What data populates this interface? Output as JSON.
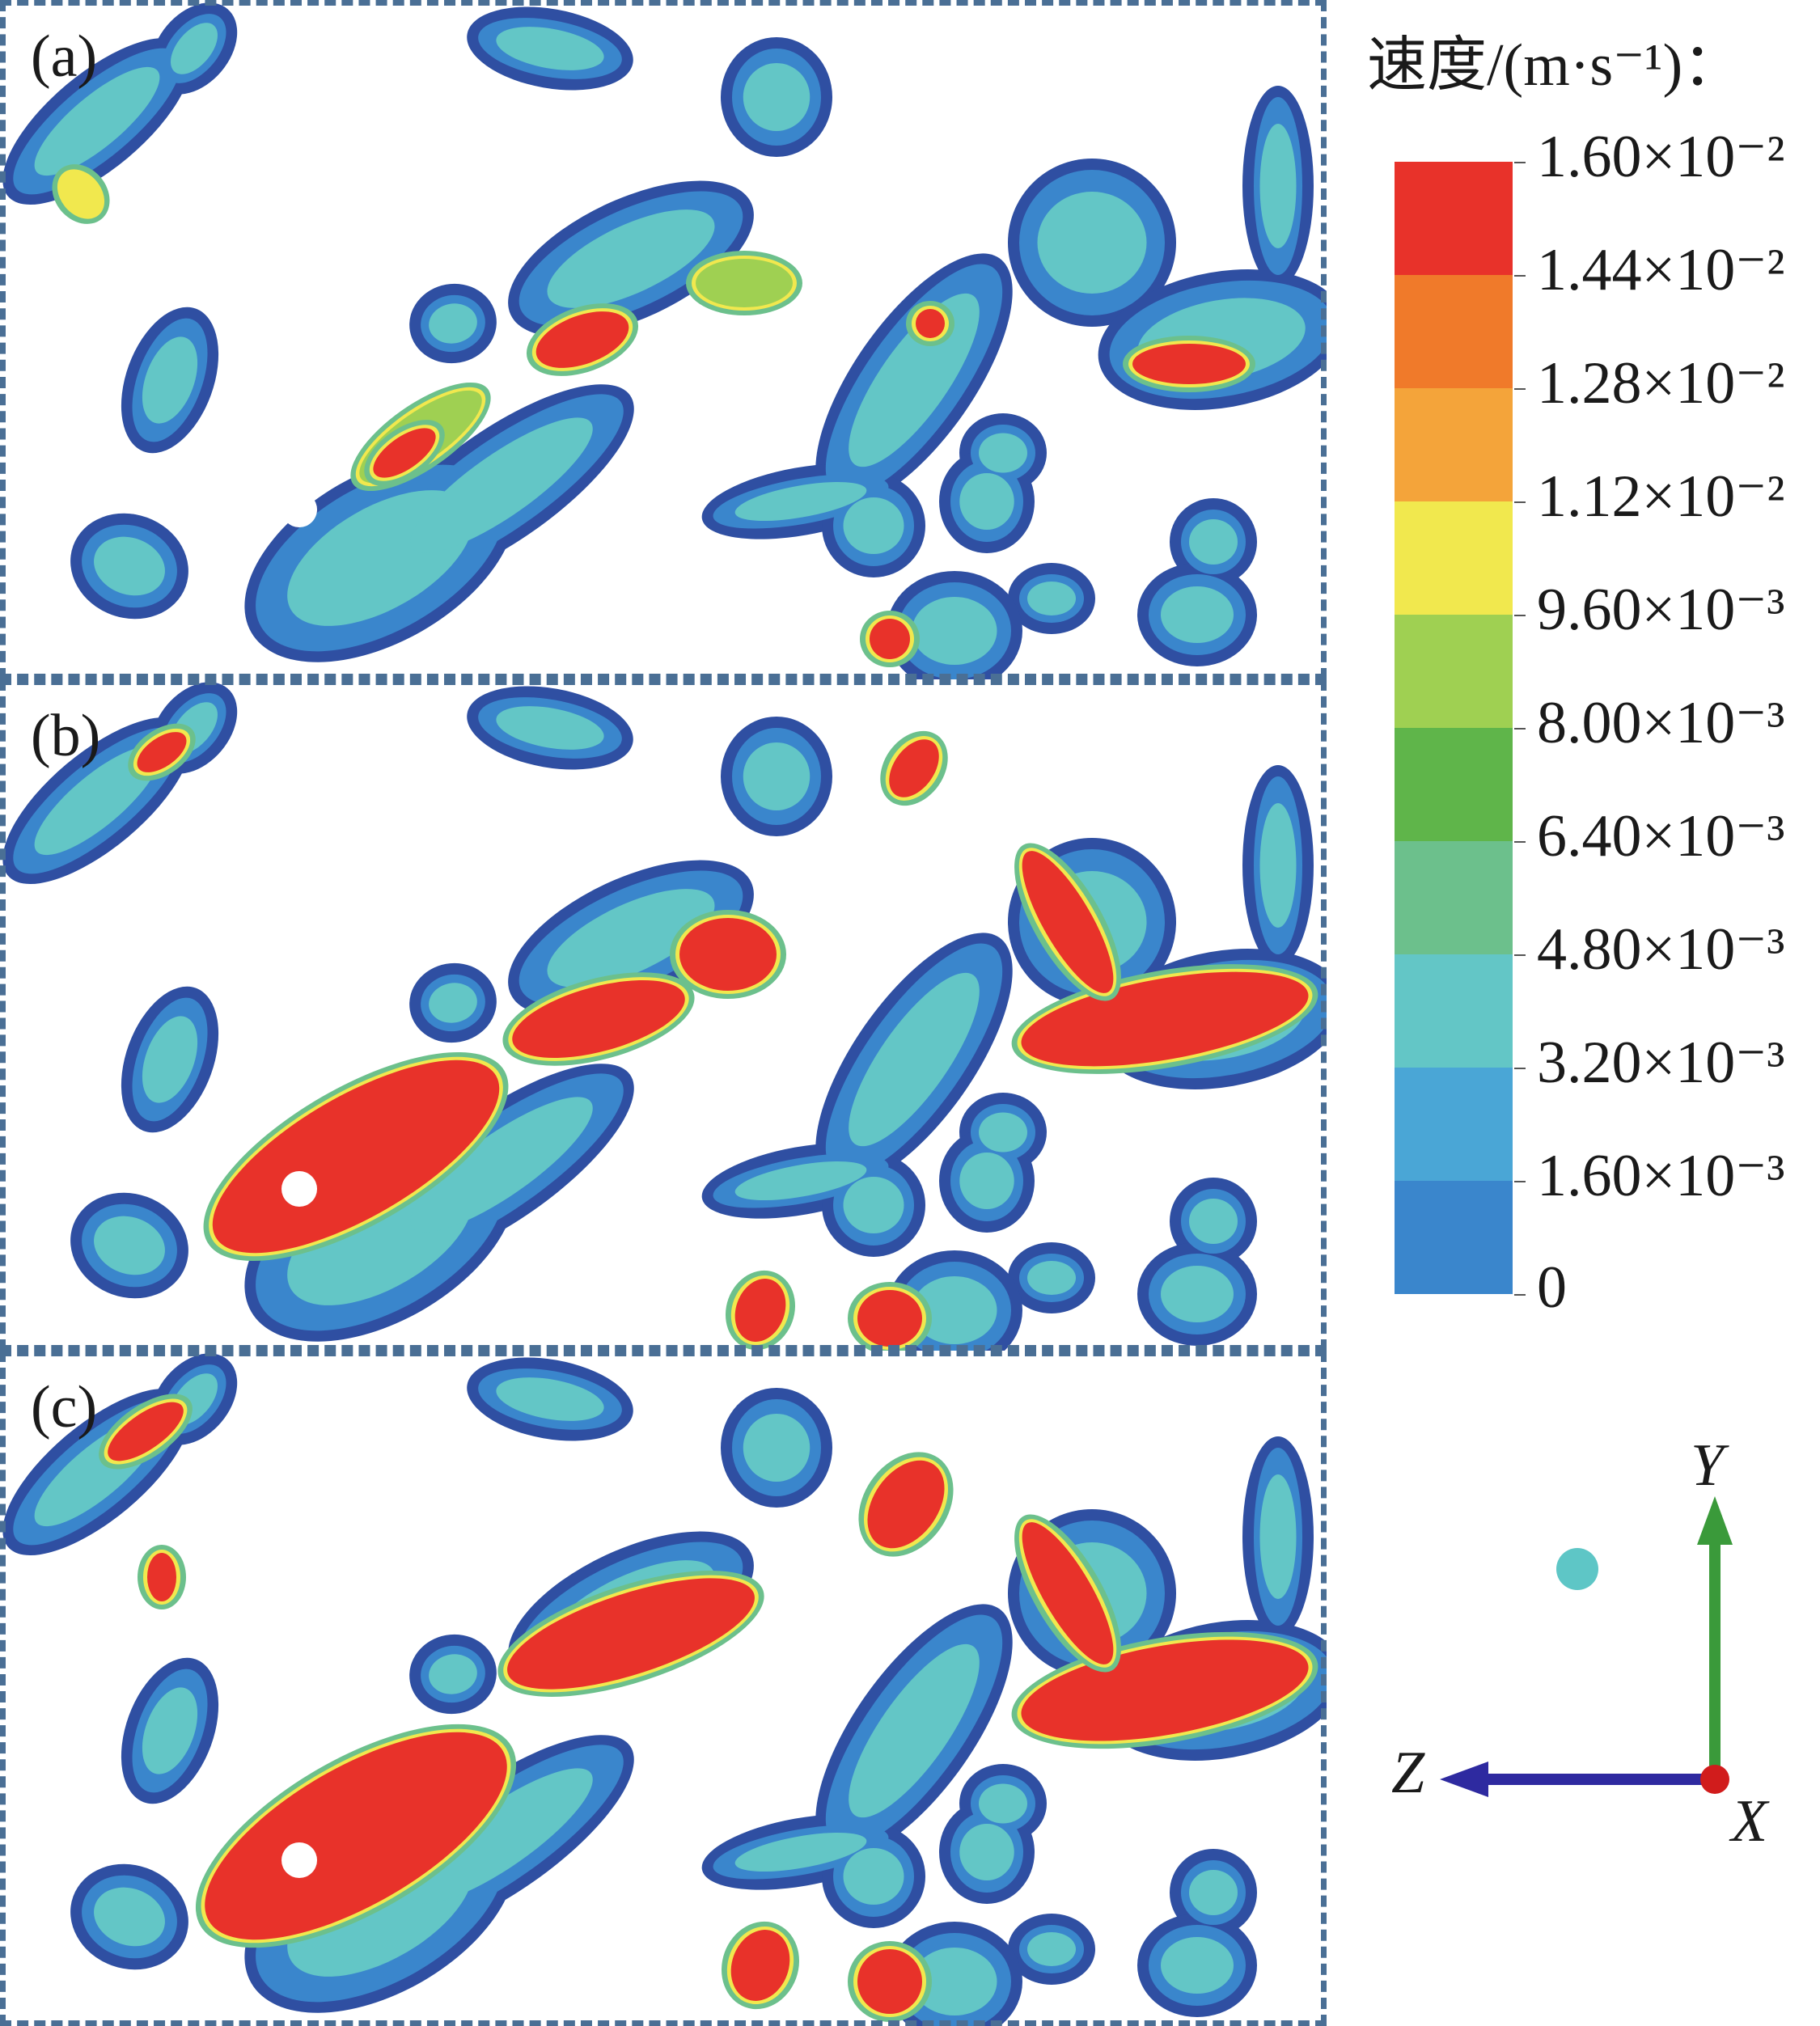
{
  "figure": {
    "panels": [
      {
        "label": "(a)"
      },
      {
        "label": "(b)"
      },
      {
        "label": "(c)"
      }
    ]
  },
  "legend": {
    "title": "速度/(m·s⁻¹)：",
    "ticks": [
      {
        "label": "1.60×10⁻²",
        "color": "#e8322a"
      },
      {
        "label": "1.44×10⁻²",
        "color": "#f07a2a"
      },
      {
        "label": "1.28×10⁻²",
        "color": "#f4a43a"
      },
      {
        "label": "1.12×10⁻²",
        "color": "#f1e84e"
      },
      {
        "label": "9.60×10⁻³",
        "color": "#9fd052"
      },
      {
        "label": "8.00×10⁻³",
        "color": "#5fb54a"
      },
      {
        "label": "6.40×10⁻³",
        "color": "#6cc08c"
      },
      {
        "label": "4.80×10⁻³",
        "color": "#63c6c6"
      },
      {
        "label": "3.20×10⁻³",
        "color": "#4aa6d6"
      },
      {
        "label": "1.60×10⁻³",
        "color": "#3a86cc"
      },
      {
        "label": "0",
        "color": "#2f4fa2"
      }
    ]
  },
  "axes_triad": {
    "y_label": "Y",
    "z_label": "Z",
    "x_label": "X",
    "colors": {
      "y": "#3a9a3a",
      "z": "#2e2aa0",
      "x": "#d11c1c",
      "sphere": "#5ec6c6"
    }
  }
}
